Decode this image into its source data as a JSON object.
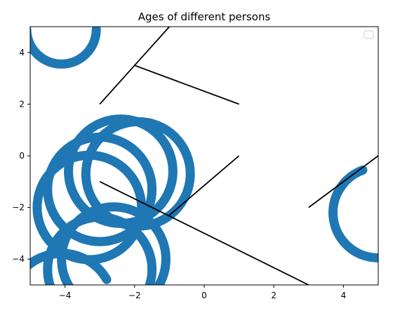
{
  "chart_data": {
    "type": "line",
    "title": "Ages of different persons",
    "xlabel": "",
    "ylabel": "",
    "xlim": [
      -5,
      5
    ],
    "ylim": [
      -5,
      5
    ],
    "grid": false,
    "legend": {
      "placement": "top-right",
      "entries": []
    },
    "xticks": [
      -4,
      -2,
      0,
      2,
      4
    ],
    "yticks": [
      -4,
      -2,
      0,
      2,
      4
    ],
    "xtick_labels": [
      "−4",
      "−2",
      "0",
      "2",
      "4"
    ],
    "ytick_labels": [
      "−4",
      "−2",
      "0",
      "2",
      "4"
    ],
    "segments": [
      {
        "x": [
          -3,
          -2,
          1
        ],
        "y": [
          2,
          3.5,
          2
        ]
      },
      {
        "x": [
          -2,
          -1
        ],
        "y": [
          3.5,
          5
        ]
      },
      {
        "x": [
          -3,
          3
        ],
        "y": [
          -1,
          -5
        ]
      },
      {
        "x": [
          -1,
          1
        ],
        "y": [
          -2.3,
          0
        ]
      },
      {
        "x": [
          3,
          5
        ],
        "y": [
          -2,
          0
        ]
      }
    ],
    "circles": [
      {
        "cx": -4.1,
        "cy": 4.9,
        "r": 1.0,
        "arc": [
          180,
          360
        ]
      },
      {
        "cx": -4.1,
        "cy": -5.8,
        "r": 1.5,
        "arc": [
          30,
          180
        ]
      },
      {
        "cx": -3.0,
        "cy": -1.3,
        "r": 1.5
      },
      {
        "cx": -3.3,
        "cy": -2.0,
        "r": 1.5
      },
      {
        "cx": -2.4,
        "cy": -0.6,
        "r": 1.5
      },
      {
        "cx": -1.9,
        "cy": -0.7,
        "r": 1.5
      },
      {
        "cx": -2.6,
        "cy": -4.0,
        "r": 1.5
      },
      {
        "cx": -3.0,
        "cy": -4.4,
        "r": 1.5
      },
      {
        "cx": 5.0,
        "cy": -2.2,
        "r": 1.3,
        "arc": [
          110,
          270
        ]
      }
    ],
    "colors": {
      "line": "#000000",
      "circle": "#1f77b4",
      "axes": "#000000"
    }
  }
}
